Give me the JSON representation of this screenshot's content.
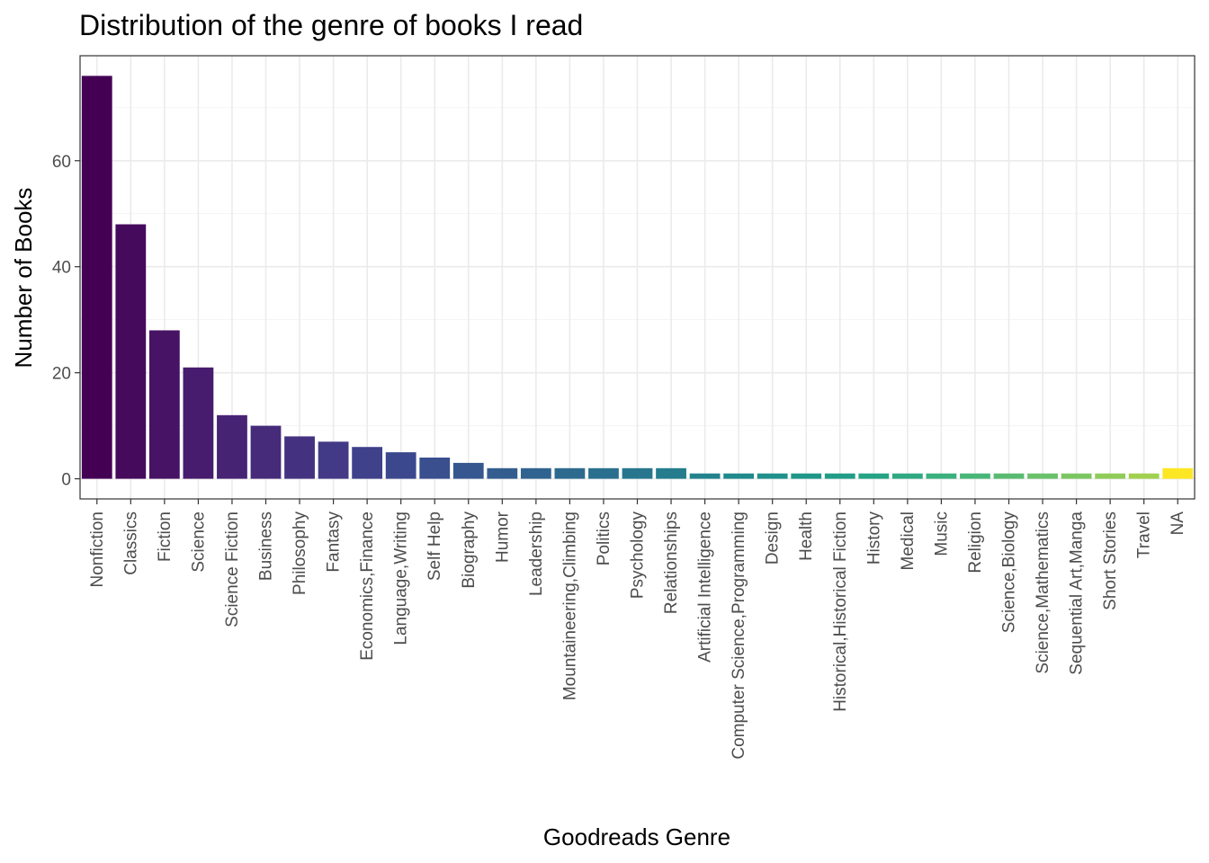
{
  "chart_data": {
    "type": "bar",
    "title": "Distribution of the genre of books I read",
    "xlabel": "Goodreads Genre",
    "ylabel": "Number of Books",
    "ylim": [
      -3.8,
      79.8
    ],
    "yticks": [
      0,
      20,
      40,
      60
    ],
    "grid": true,
    "legend": "none",
    "color_scale": "viridis",
    "categories": [
      "Nonfiction",
      "Classics",
      "Fiction",
      "Science",
      "Science Fiction",
      "Business",
      "Philosophy",
      "Fantasy",
      "Economics,Finance",
      "Language,Writing",
      "Self Help",
      "Biography",
      "Humor",
      "Leadership",
      "Mountaineering,Climbing",
      "Politics",
      "Psychology",
      "Relationships",
      "Artificial Intelligence",
      "Computer Science,Programming",
      "Design",
      "Health",
      "Historical,Historical Fiction",
      "History",
      "Medical",
      "Music",
      "Religion",
      "Science,Biology",
      "Science,Mathematics",
      "Sequential Art,Manga",
      "Short Stories",
      "Travel",
      "NA"
    ],
    "values": [
      76,
      48,
      28,
      21,
      12,
      10,
      8,
      7,
      6,
      5,
      4,
      3,
      2,
      2,
      2,
      2,
      2,
      2,
      1,
      1,
      1,
      1,
      1,
      1,
      1,
      1,
      1,
      1,
      1,
      1,
      1,
      1,
      2
    ],
    "colors": [
      "#440154",
      "#450a5c",
      "#471365",
      "#471b6d",
      "#472374",
      "#462b7a",
      "#443281",
      "#423a86",
      "#3f418a",
      "#3c488d",
      "#394f8e",
      "#36568f",
      "#335d8f",
      "#30638f",
      "#2d6a8e",
      "#2a708e",
      "#27768e",
      "#257c8d",
      "#22838d",
      "#20898c",
      "#1f908b",
      "#1f9689",
      "#219d87",
      "#25a385",
      "#2ea981",
      "#3ab07c",
      "#48b677",
      "#58bb71",
      "#69c16a",
      "#7bc661",
      "#8fcc59",
      "#a2d04f",
      "#fde725"
    ]
  }
}
